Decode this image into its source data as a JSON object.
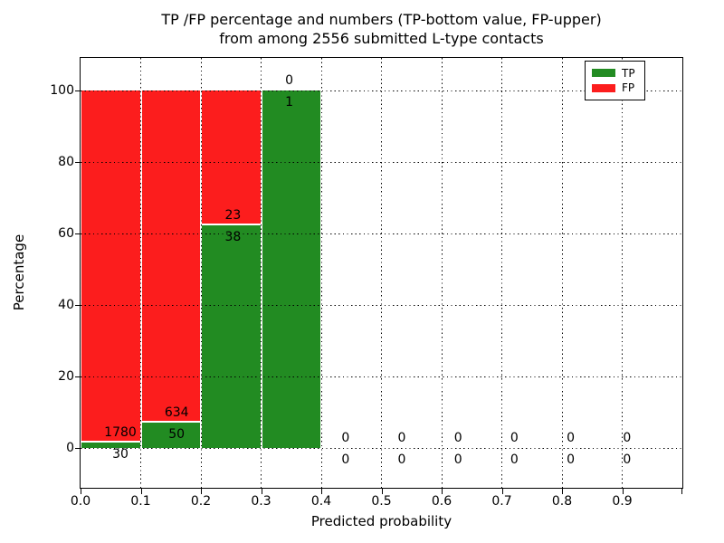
{
  "title": {
    "line1": "TP /FP percentage and numbers (TP-bottom value, FP-upper)",
    "line2": "from among 2556 submitted L-type contacts"
  },
  "axes": {
    "xlabel": "Predicted probability",
    "ylabel": "Percentage",
    "xtick_labels": [
      "0.0",
      "0.1",
      "0.2",
      "0.3",
      "0.4",
      "0.5",
      "0.6",
      "0.7",
      "0.8",
      "0.9"
    ],
    "xtick_values": [
      0.0,
      0.1,
      0.2,
      0.3,
      0.4,
      0.5,
      0.6,
      0.7,
      0.8,
      0.9
    ],
    "ytick_labels": [
      "0",
      "20",
      "40",
      "60",
      "80",
      "100"
    ],
    "ytick_values": [
      0,
      20,
      40,
      60,
      80,
      100
    ]
  },
  "legend": {
    "items": [
      {
        "label": "TP",
        "color": "#228b22"
      },
      {
        "label": "FP",
        "color": "#fc1d1d"
      }
    ]
  },
  "chart_data": {
    "type": "bar",
    "subtype": "stacked-percentage-histogram",
    "title": "TP /FP percentage and numbers (TP-bottom value, FP-upper) from among 2556 submitted L-type contacts",
    "xlabel": "Predicted probability",
    "ylabel": "Percentage",
    "xlim": [
      0.0,
      1.0
    ],
    "ylim": [
      -11,
      109
    ],
    "grid": "dotted-black",
    "legend_position": "upper right",
    "total_submitted": 2556,
    "bin_edges": [
      0.0,
      0.1,
      0.2,
      0.3,
      0.4,
      0.5,
      0.6,
      0.7,
      0.8,
      0.9,
      1.0
    ],
    "categories": [
      "0.0-0.1",
      "0.1-0.2",
      "0.2-0.3",
      "0.3-0.4",
      "0.4-0.5",
      "0.5-0.6",
      "0.6-0.7",
      "0.7-0.8",
      "0.8-0.9",
      "0.9-1.0"
    ],
    "series": [
      {
        "name": "TP",
        "color": "#228b22",
        "counts": [
          30,
          50,
          38,
          1,
          0,
          0,
          0,
          0,
          0,
          0
        ],
        "percent": [
          1.66,
          7.31,
          62.3,
          100.0,
          0,
          0,
          0,
          0,
          0,
          0
        ]
      },
      {
        "name": "FP",
        "color": "#fc1d1d",
        "counts": [
          1780,
          634,
          23,
          0,
          0,
          0,
          0,
          0,
          0,
          0
        ],
        "percent": [
          98.34,
          92.69,
          37.7,
          0.0,
          0,
          0,
          0,
          0,
          0,
          0
        ]
      }
    ]
  }
}
